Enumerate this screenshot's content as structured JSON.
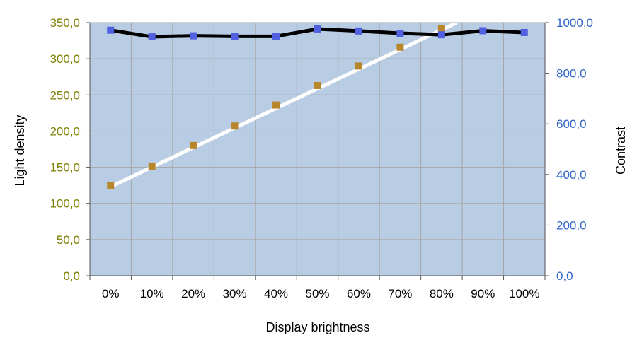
{
  "chart_data": {
    "type": "line",
    "xlabel": "Display brightness",
    "ylabel": "Light density",
    "y2label": "Contrast",
    "categories": [
      "0%",
      "10%",
      "20%",
      "30%",
      "40%",
      "50%",
      "60%",
      "70%",
      "80%",
      "90%",
      "100%"
    ],
    "ylim": [
      0,
      350
    ],
    "y2lim": [
      0,
      1000
    ],
    "yticks": [
      "0,0",
      "50,0",
      "100,0",
      "150,0",
      "200,0",
      "250,0",
      "300,0",
      "350,0"
    ],
    "y2ticks": [
      "0,0",
      "200,0",
      "400,0",
      "600,0",
      "800,0",
      "1000,0"
    ],
    "grid": true,
    "series": [
      {
        "axis": "left",
        "values": [
          125,
          151,
          180,
          207,
          236,
          263,
          290,
          316,
          342,
          null,
          null
        ],
        "trend": [
          123,
          350
        ],
        "marker_color": "#b8862b",
        "line_color": "#ffffff"
      },
      {
        "axis": "right",
        "values": [
          970,
          944,
          948,
          946,
          946,
          975,
          967,
          958,
          952,
          968,
          961
        ],
        "marker_color": "#5060e0",
        "line_color": "#000000"
      }
    ],
    "colors": {
      "plot_bg": "#b8cce4",
      "grid": "#a6a6a6",
      "left_axis_text": "#7f7f00",
      "right_axis_text": "#3366cc"
    }
  }
}
